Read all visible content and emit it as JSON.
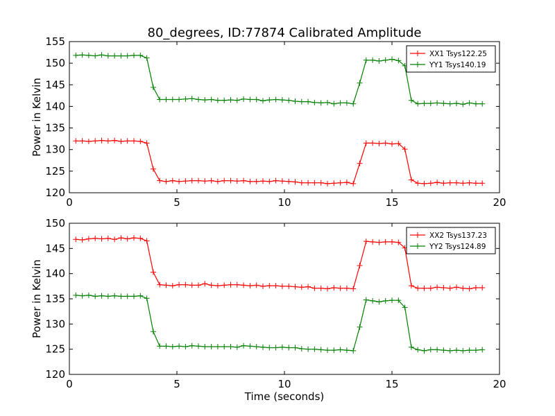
{
  "title": "80_degrees, ID:77874 Calibrated Amplitude",
  "chart_data": [
    {
      "type": "line",
      "title": "80_degrees, ID:77874 Calibrated Amplitude",
      "xlabel": "",
      "ylabel": "Power in Kelvin",
      "xlim": [
        0,
        20
      ],
      "ylim": [
        120,
        155
      ],
      "xticks": [
        0,
        5,
        10,
        15,
        20
      ],
      "yticks": [
        120,
        125,
        130,
        135,
        140,
        145,
        150,
        155
      ],
      "grid": false,
      "legend_position": "top-right",
      "x": [
        0.3,
        0.6,
        0.9,
        1.2,
        1.5,
        1.8,
        2.1,
        2.4,
        2.7,
        3.0,
        3.3,
        3.6,
        3.9,
        4.2,
        4.5,
        4.8,
        5.1,
        5.4,
        5.7,
        6.0,
        6.3,
        6.6,
        6.9,
        7.2,
        7.5,
        7.8,
        8.1,
        8.4,
        8.7,
        9.0,
        9.3,
        9.6,
        9.9,
        10.2,
        10.5,
        10.8,
        11.1,
        11.4,
        11.7,
        12.0,
        12.3,
        12.6,
        12.9,
        13.2,
        13.5,
        13.8,
        14.1,
        14.4,
        14.7,
        15.0,
        15.3,
        15.6,
        15.9,
        16.2,
        16.5,
        16.8,
        17.1,
        17.4,
        17.7,
        18.0,
        18.3,
        18.6,
        18.9,
        19.2
      ],
      "series": [
        {
          "name": "XX1 Tsys122.25",
          "color": "#ff0000",
          "values": [
            132.0,
            132.0,
            131.9,
            132.0,
            132.1,
            132.0,
            132.1,
            131.9,
            132.0,
            132.0,
            131.9,
            131.5,
            125.5,
            122.8,
            122.6,
            122.8,
            122.6,
            122.7,
            122.8,
            122.8,
            122.7,
            122.8,
            122.6,
            122.8,
            122.8,
            122.7,
            122.8,
            122.6,
            122.6,
            122.7,
            122.6,
            122.8,
            122.7,
            122.6,
            122.5,
            122.3,
            122.3,
            122.3,
            122.3,
            122.1,
            122.2,
            122.3,
            122.4,
            122.1,
            126.8,
            131.5,
            131.5,
            131.4,
            131.5,
            131.3,
            131.4,
            130.1,
            123.0,
            122.2,
            122.1,
            122.2,
            122.4,
            122.2,
            122.3,
            122.3,
            122.2,
            122.3,
            122.2,
            122.2
          ]
        },
        {
          "name": "YY1 Tsys140.19",
          "color": "#008000",
          "values": [
            151.8,
            151.9,
            151.8,
            151.7,
            151.9,
            151.7,
            151.7,
            151.7,
            151.7,
            151.8,
            151.8,
            151.2,
            144.4,
            141.6,
            141.6,
            141.6,
            141.6,
            141.7,
            141.8,
            141.6,
            141.5,
            141.6,
            141.4,
            141.4,
            141.5,
            141.4,
            141.7,
            141.6,
            141.6,
            141.3,
            141.5,
            141.6,
            141.5,
            141.4,
            141.2,
            141.1,
            141.1,
            140.9,
            140.8,
            140.9,
            140.6,
            140.8,
            140.8,
            140.6,
            145.4,
            150.7,
            150.7,
            150.5,
            150.7,
            150.9,
            150.6,
            149.4,
            141.4,
            140.6,
            140.7,
            140.7,
            140.8,
            140.7,
            140.6,
            140.7,
            140.5,
            140.8,
            140.6,
            140.6
          ]
        }
      ]
    },
    {
      "type": "line",
      "title": "",
      "xlabel": "Time (seconds)",
      "ylabel": "Power in Kelvin",
      "xlim": [
        0,
        20
      ],
      "ylim": [
        120,
        150
      ],
      "xticks": [
        0,
        5,
        10,
        15,
        20
      ],
      "yticks": [
        120,
        125,
        130,
        135,
        140,
        145,
        150
      ],
      "grid": false,
      "legend_position": "top-right",
      "x": [
        0.3,
        0.6,
        0.9,
        1.2,
        1.5,
        1.8,
        2.1,
        2.4,
        2.7,
        3.0,
        3.3,
        3.6,
        3.9,
        4.2,
        4.5,
        4.8,
        5.1,
        5.4,
        5.7,
        6.0,
        6.3,
        6.6,
        6.9,
        7.2,
        7.5,
        7.8,
        8.1,
        8.4,
        8.7,
        9.0,
        9.3,
        9.6,
        9.9,
        10.2,
        10.5,
        10.8,
        11.1,
        11.4,
        11.7,
        12.0,
        12.3,
        12.6,
        12.9,
        13.2,
        13.5,
        13.8,
        14.1,
        14.4,
        14.7,
        15.0,
        15.3,
        15.6,
        15.9,
        16.2,
        16.5,
        16.8,
        17.1,
        17.4,
        17.7,
        18.0,
        18.3,
        18.6,
        18.9,
        19.2
      ],
      "series": [
        {
          "name": "XX2 Tsys137.23",
          "color": "#ff0000",
          "values": [
            146.8,
            146.7,
            146.9,
            147.0,
            146.9,
            147.0,
            146.8,
            147.1,
            146.9,
            147.1,
            147.0,
            146.5,
            140.3,
            137.8,
            137.7,
            137.6,
            137.8,
            137.8,
            137.7,
            137.7,
            138.0,
            137.7,
            137.6,
            137.7,
            137.8,
            137.8,
            137.7,
            137.6,
            137.7,
            137.5,
            137.6,
            137.6,
            137.5,
            137.5,
            137.4,
            137.3,
            137.4,
            137.1,
            137.1,
            137.0,
            137.2,
            137.1,
            137.1,
            137.0,
            141.6,
            146.4,
            146.3,
            146.2,
            146.3,
            146.3,
            146.2,
            145.1,
            137.6,
            137.1,
            137.1,
            137.1,
            137.3,
            137.2,
            137.1,
            137.3,
            137.1,
            137.0,
            137.2,
            137.2
          ]
        },
        {
          "name": "YY2 Tsys124.89",
          "color": "#008000",
          "values": [
            135.7,
            135.6,
            135.7,
            135.5,
            135.6,
            135.5,
            135.6,
            135.5,
            135.5,
            135.5,
            135.6,
            135.1,
            128.5,
            125.6,
            125.6,
            125.5,
            125.6,
            125.5,
            125.7,
            125.6,
            125.5,
            125.5,
            125.5,
            125.5,
            125.5,
            125.4,
            125.7,
            125.6,
            125.5,
            125.4,
            125.3,
            125.3,
            125.4,
            125.3,
            125.3,
            125.1,
            125.0,
            125.0,
            124.9,
            124.8,
            124.8,
            124.9,
            124.8,
            124.7,
            129.4,
            134.8,
            134.6,
            134.4,
            134.6,
            134.7,
            134.7,
            133.3,
            125.4,
            124.9,
            124.7,
            124.9,
            124.9,
            124.8,
            124.7,
            124.8,
            124.7,
            124.8,
            124.8,
            124.9
          ]
        }
      ]
    }
  ]
}
